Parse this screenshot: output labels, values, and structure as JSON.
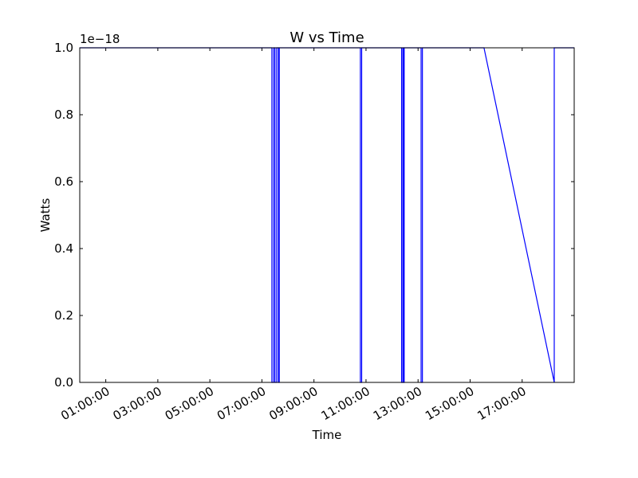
{
  "chart_data": {
    "type": "line",
    "title": "W vs Time",
    "xlabel": "Time",
    "ylabel": "Watts",
    "y_scale_label": "1e−18",
    "ylim": [
      0.0,
      1.0
    ],
    "xlim": [
      "00:00:00",
      "19:00:00"
    ],
    "grid": false,
    "yticks": [
      {
        "value": 0.0,
        "label": "0.0"
      },
      {
        "value": 0.2,
        "label": "0.2"
      },
      {
        "value": 0.4,
        "label": "0.4"
      },
      {
        "value": 0.6,
        "label": "0.6"
      },
      {
        "value": 0.8,
        "label": "0.8"
      },
      {
        "value": 1.0,
        "label": "1.0"
      }
    ],
    "xticks": [
      {
        "value": "01:00:00",
        "label": "01:00:00"
      },
      {
        "value": "03:00:00",
        "label": "03:00:00"
      },
      {
        "value": "05:00:00",
        "label": "05:00:00"
      },
      {
        "value": "07:00:00",
        "label": "07:00:00"
      },
      {
        "value": "09:00:00",
        "label": "09:00:00"
      },
      {
        "value": "11:00:00",
        "label": "11:00:00"
      },
      {
        "value": "13:00:00",
        "label": "13:00:00"
      },
      {
        "value": "15:00:00",
        "label": "15:00:00"
      },
      {
        "value": "17:00:00",
        "label": "17:00:00"
      }
    ],
    "series": [
      {
        "color": "#0000ff",
        "points": [
          {
            "x": "00:00:00",
            "y": 1.0
          },
          {
            "x": "07:23:00",
            "y": 1.0
          },
          {
            "x": "07:23:00",
            "y": 0.0
          },
          {
            "x": "07:27:00",
            "y": 0.0
          },
          {
            "x": "07:27:00",
            "y": 1.0
          },
          {
            "x": "07:30:00",
            "y": 1.0
          },
          {
            "x": "07:30:00",
            "y": 0.0
          },
          {
            "x": "07:34:00",
            "y": 0.0
          },
          {
            "x": "07:34:00",
            "y": 1.0
          },
          {
            "x": "07:38:00",
            "y": 1.0
          },
          {
            "x": "07:38:00",
            "y": 0.0
          },
          {
            "x": "07:40:00",
            "y": 0.0
          },
          {
            "x": "07:40:00",
            "y": 1.0
          },
          {
            "x": "10:47:00",
            "y": 1.0
          },
          {
            "x": "10:47:00",
            "y": 0.0
          },
          {
            "x": "10:50:00",
            "y": 0.0
          },
          {
            "x": "10:50:00",
            "y": 1.0
          },
          {
            "x": "12:22:00",
            "y": 1.0
          },
          {
            "x": "12:22:00",
            "y": 0.0
          },
          {
            "x": "12:25:00",
            "y": 0.0
          },
          {
            "x": "12:25:00",
            "y": 1.0
          },
          {
            "x": "12:26:00",
            "y": 1.0
          },
          {
            "x": "12:26:00",
            "y": 0.0
          },
          {
            "x": "12:28:00",
            "y": 0.0
          },
          {
            "x": "12:28:00",
            "y": 1.0
          },
          {
            "x": "13:07:00",
            "y": 1.0
          },
          {
            "x": "13:07:00",
            "y": 0.0
          },
          {
            "x": "13:10:00",
            "y": 0.0
          },
          {
            "x": "13:10:00",
            "y": 1.0
          },
          {
            "x": "15:32:00",
            "y": 1.0
          },
          {
            "x": "18:14:00",
            "y": 0.0
          },
          {
            "x": "18:14:00",
            "y": 1.0
          },
          {
            "x": "19:00:00",
            "y": 1.0
          }
        ]
      }
    ]
  }
}
